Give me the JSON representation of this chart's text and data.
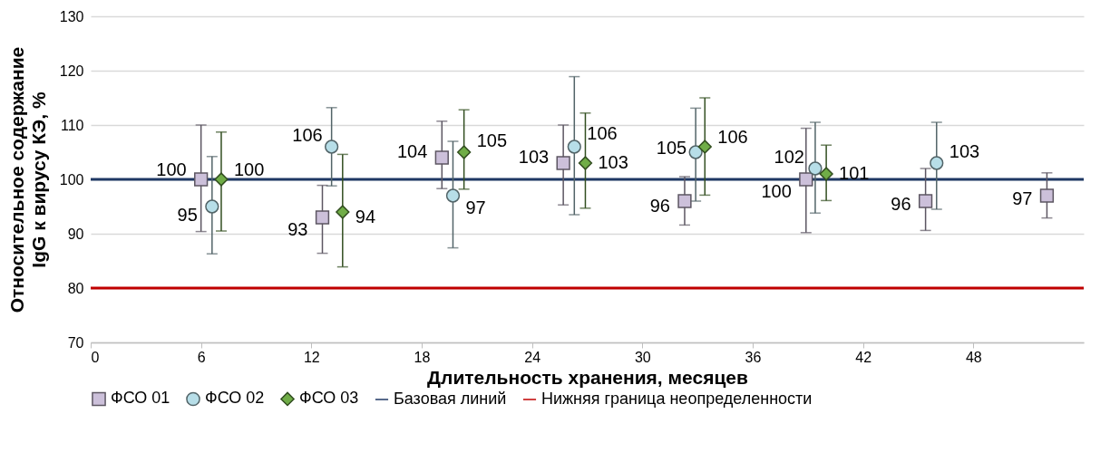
{
  "chart_data": {
    "type": "scatter",
    "xlabel": "Длительность хранения, месяцев",
    "ylabel": "Относительное содержание\nIgG к вирусу КЭ, %",
    "xlim": [
      0,
      54
    ],
    "xticks": [
      0,
      6,
      12,
      18,
      24,
      30,
      36,
      42,
      48
    ],
    "ylim": [
      70,
      130
    ],
    "yticks": [
      70,
      80,
      90,
      100,
      110,
      120,
      130
    ],
    "grid": "y",
    "legend": "bottom",
    "data_labels": true,
    "series": [
      {
        "name": "ФСО 01",
        "color": "#ccc0da",
        "marker": "square",
        "x": [
          6.0,
          12.6,
          19.1,
          25.7,
          32.3,
          38.9,
          45.4,
          52.0
        ],
        "values": [
          100,
          93,
          104,
          103,
          96,
          100,
          96,
          97
        ],
        "errors": [
          [
            90.4,
            110.0
          ],
          [
            86.4,
            98.9
          ],
          [
            98.3,
            110.7
          ],
          [
            95.3,
            110.0
          ],
          [
            91.6,
            100.5
          ],
          [
            90.2,
            109.4
          ],
          [
            90.6,
            102.0
          ],
          [
            92.9,
            101.2
          ]
        ]
      },
      {
        "name": "ФСО 02",
        "color": "#b7dee8",
        "marker": "circle",
        "x": [
          6.6,
          13.1,
          19.7,
          26.3,
          32.9,
          39.4,
          46.0
        ],
        "values": [
          95,
          106,
          97,
          106,
          105,
          102,
          103
        ],
        "errors": [
          [
            86.3,
            104.2
          ],
          [
            98.8,
            113.2
          ],
          [
            87.4,
            107.0
          ],
          [
            93.5,
            118.9
          ],
          [
            96.0,
            113.1
          ],
          [
            93.8,
            110.5
          ],
          [
            94.5,
            110.5
          ]
        ]
      },
      {
        "name": "ФСО 03",
        "color": "#70ad47",
        "marker": "diamond",
        "x": [
          7.1,
          13.7,
          20.3,
          26.9,
          33.4,
          40.0
        ],
        "values": [
          100,
          94,
          105,
          103,
          106,
          101
        ],
        "errors": [
          [
            90.5,
            108.7
          ],
          [
            83.9,
            104.6
          ],
          [
            98.2,
            112.8
          ],
          [
            94.7,
            112.2
          ],
          [
            97.1,
            115.0
          ],
          [
            96.1,
            106.3
          ]
        ]
      }
    ],
    "ref_lines": [
      {
        "axis": "y",
        "value": 100,
        "label": "Базовая линий",
        "color": "#1f3864"
      },
      {
        "axis": "y",
        "value": 80,
        "label": "Нижняя граница неопределенности",
        "color": "#c00000"
      }
    ]
  }
}
